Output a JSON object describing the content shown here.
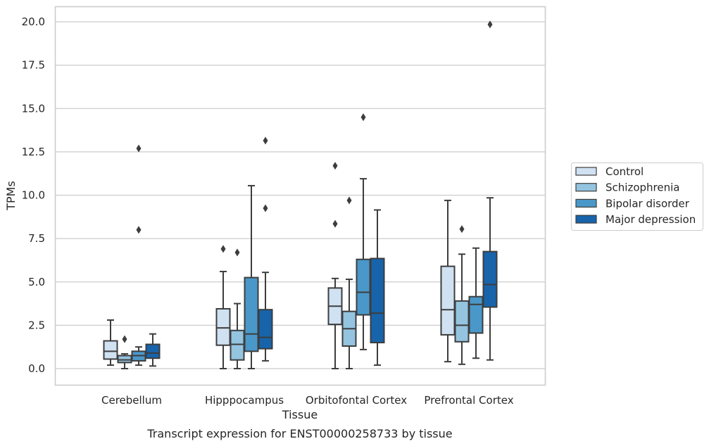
{
  "chart_data": {
    "type": "box",
    "caption": "Transcript expression for ENST00000258733 by tissue",
    "xlabel": "Tissue",
    "ylabel": "TPMs",
    "ylim": [
      -0.95,
      20.9
    ],
    "yticks": [
      "0.0",
      "2.5",
      "5.0",
      "7.5",
      "10.0",
      "12.5",
      "15.0",
      "17.5",
      "20.0"
    ],
    "grid": "horizontal",
    "legend_position": "right",
    "categories": [
      "Cerebellum",
      "Hipppocampus",
      "Orbitofontal Cortex",
      "Prefrontal Cortex"
    ],
    "series": [
      {
        "name": "Control",
        "color": "#d0e1f2",
        "boxes": [
          {
            "whisker_low": 0.2,
            "q1": 0.55,
            "median": 1.0,
            "q3": 1.6,
            "whisker_high": 2.8,
            "outliers": []
          },
          {
            "whisker_low": 0.0,
            "q1": 1.35,
            "median": 2.35,
            "q3": 3.45,
            "whisker_high": 5.6,
            "outliers": [
              6.9
            ]
          },
          {
            "whisker_low": 0.0,
            "q1": 2.55,
            "median": 3.6,
            "q3": 4.65,
            "whisker_high": 5.2,
            "outliers": [
              8.35,
              11.7
            ]
          },
          {
            "whisker_low": 0.4,
            "q1": 1.95,
            "median": 3.4,
            "q3": 5.9,
            "whisker_high": 9.7,
            "outliers": []
          }
        ]
      },
      {
        "name": "Schizophrenia",
        "color": "#94c4df",
        "boxes": [
          {
            "whisker_low": 0.0,
            "q1": 0.35,
            "median": 0.5,
            "q3": 0.75,
            "whisker_high": 0.85,
            "outliers": [
              1.7
            ]
          },
          {
            "whisker_low": 0.0,
            "q1": 0.5,
            "median": 1.4,
            "q3": 2.2,
            "whisker_high": 3.75,
            "outliers": [
              6.7
            ]
          },
          {
            "whisker_low": 0.0,
            "q1": 1.3,
            "median": 2.3,
            "q3": 3.3,
            "whisker_high": 5.15,
            "outliers": [
              9.7
            ]
          },
          {
            "whisker_low": 0.25,
            "q1": 1.55,
            "median": 2.5,
            "q3": 3.9,
            "whisker_high": 6.6,
            "outliers": [
              8.05
            ]
          }
        ]
      },
      {
        "name": "Bipolar disorder",
        "color": "#4a98c9",
        "boxes": [
          {
            "whisker_low": 0.2,
            "q1": 0.45,
            "median": 0.75,
            "q3": 1.0,
            "whisker_high": 1.25,
            "outliers": [
              8.0,
              12.7
            ]
          },
          {
            "whisker_low": 0.0,
            "q1": 1.0,
            "median": 2.0,
            "q3": 5.25,
            "whisker_high": 10.55,
            "outliers": []
          },
          {
            "whisker_low": 1.1,
            "q1": 3.1,
            "median": 4.4,
            "q3": 6.3,
            "whisker_high": 10.95,
            "outliers": [
              14.5
            ]
          },
          {
            "whisker_low": 0.6,
            "q1": 2.05,
            "median": 3.7,
            "q3": 4.15,
            "whisker_high": 6.95,
            "outliers": []
          }
        ]
      },
      {
        "name": "Major depression",
        "color": "#1764ab",
        "boxes": [
          {
            "whisker_low": 0.15,
            "q1": 0.6,
            "median": 0.9,
            "q3": 1.4,
            "whisker_high": 2.0,
            "outliers": []
          },
          {
            "whisker_low": 0.45,
            "q1": 1.15,
            "median": 1.8,
            "q3": 3.4,
            "whisker_high": 5.55,
            "outliers": [
              9.25,
              13.15
            ]
          },
          {
            "whisker_low": 0.2,
            "q1": 1.5,
            "median": 3.2,
            "q3": 6.35,
            "whisker_high": 9.15,
            "outliers": []
          },
          {
            "whisker_low": 0.5,
            "q1": 3.55,
            "median": 4.85,
            "q3": 6.75,
            "whisker_high": 9.85,
            "outliers": [
              19.85
            ]
          }
        ]
      }
    ]
  }
}
